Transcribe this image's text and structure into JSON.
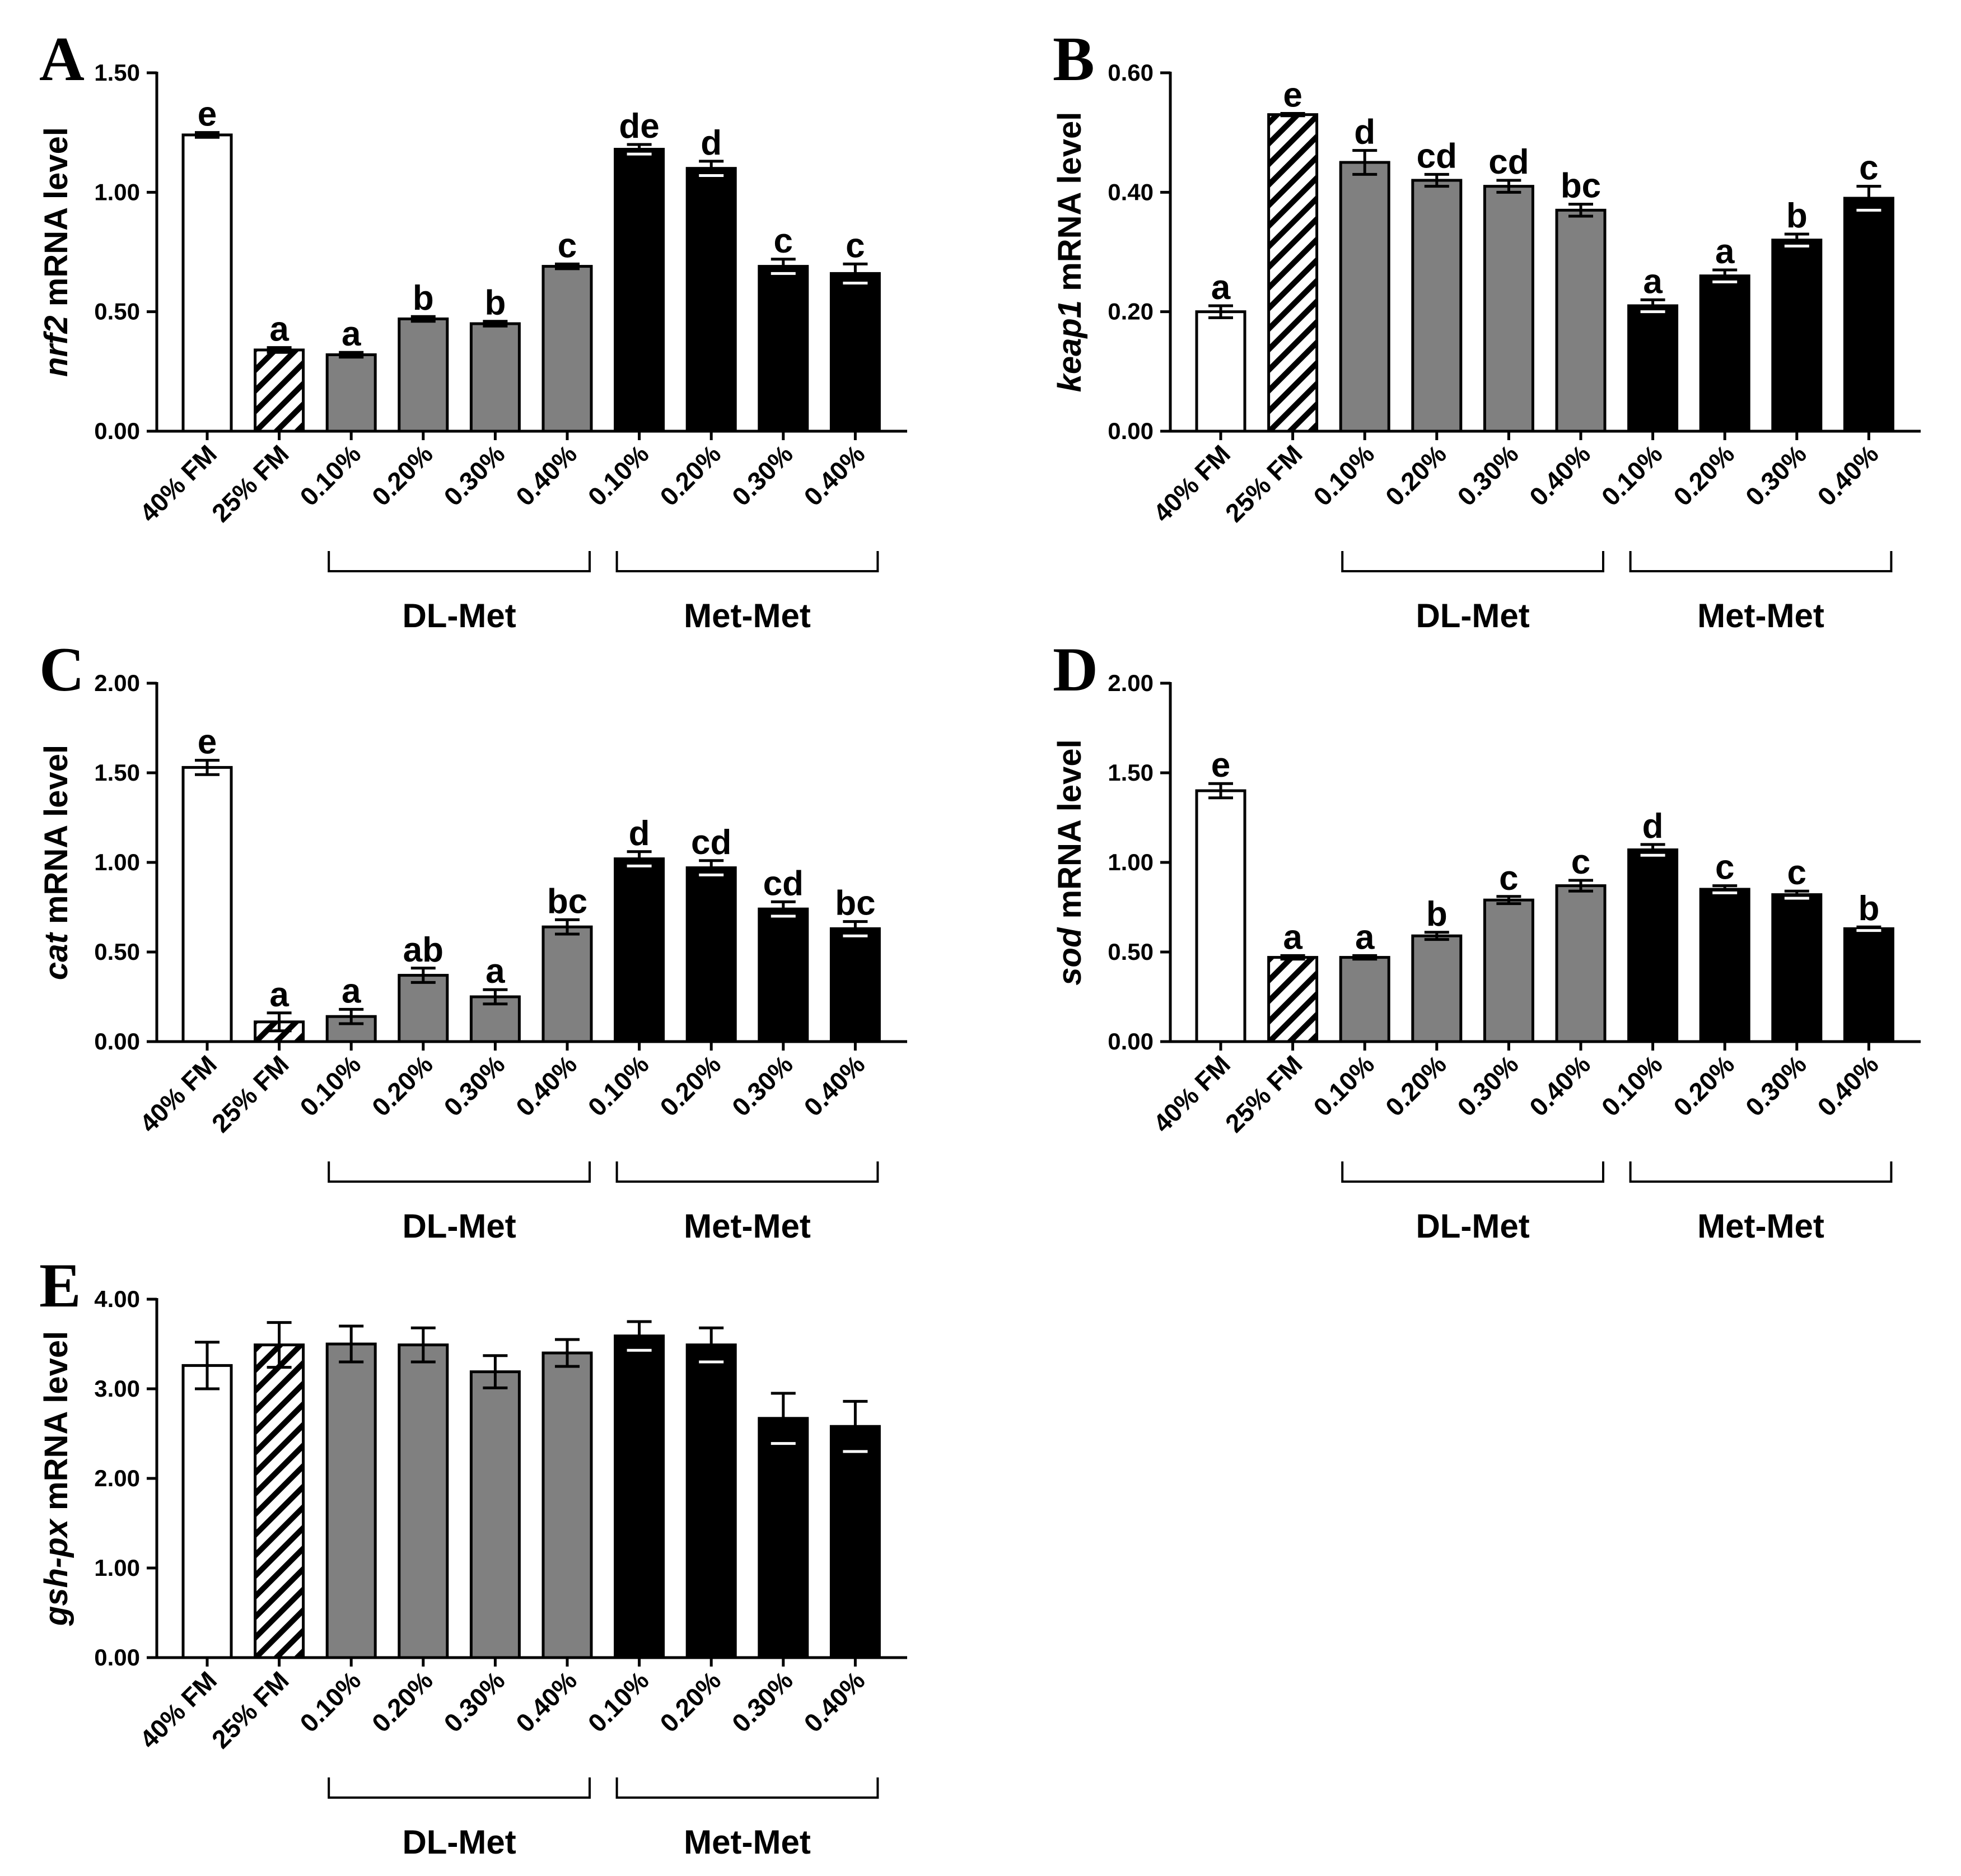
{
  "chart_data": [
    {
      "panel": "A",
      "type": "bar",
      "ylabel_gene": "nrf2",
      "ylabel_rest": " mRNA level",
      "ylim": [
        0,
        1.5
      ],
      "yticks": [
        "0.00",
        "0.50",
        "1.00",
        "1.50"
      ],
      "yticks_values": [
        0,
        0.5,
        1.0,
        1.5
      ],
      "categories": [
        "40% FM",
        "25% FM",
        "0.10%",
        "0.20%",
        "0.30%",
        "0.40%",
        "0.10%",
        "0.20%",
        "0.30%",
        "0.40%"
      ],
      "values": [
        1.24,
        0.34,
        0.32,
        0.47,
        0.45,
        0.69,
        1.18,
        1.1,
        0.69,
        0.66
      ],
      "errors": [
        0.01,
        0.01,
        0.01,
        0.01,
        0.01,
        0.01,
        0.02,
        0.03,
        0.03,
        0.04
      ],
      "letters": [
        "e",
        "a",
        "a",
        "b",
        "b",
        "c",
        "de",
        "d",
        "c",
        "c"
      ],
      "groups": [
        "DL-Met",
        "Met-Met"
      ]
    },
    {
      "panel": "B",
      "type": "bar",
      "ylabel_gene": "keap1",
      "ylabel_rest": " mRNA level",
      "ylim": [
        0,
        0.6
      ],
      "yticks": [
        "0.00",
        "0.20",
        "0.40",
        "0.60"
      ],
      "yticks_values": [
        0,
        0.2,
        0.4,
        0.6
      ],
      "categories": [
        "40% FM",
        "25% FM",
        "0.10%",
        "0.20%",
        "0.30%",
        "0.40%",
        "0.10%",
        "0.20%",
        "0.30%",
        "0.40%"
      ],
      "values": [
        0.2,
        0.53,
        0.45,
        0.42,
        0.41,
        0.37,
        0.21,
        0.26,
        0.32,
        0.39
      ],
      "errors": [
        0.01,
        0.002,
        0.02,
        0.01,
        0.01,
        0.01,
        0.01,
        0.01,
        0.01,
        0.02
      ],
      "letters": [
        "a",
        "e",
        "d",
        "cd",
        "cd",
        "bc",
        "a",
        "a",
        "b",
        "c"
      ],
      "groups": [
        "DL-Met",
        "Met-Met"
      ]
    },
    {
      "panel": "C",
      "type": "bar",
      "ylabel_gene": "cat",
      "ylabel_rest": " mRNA level",
      "ylim": [
        0,
        2.0
      ],
      "yticks": [
        "0.00",
        "0.50",
        "1.00",
        "1.50",
        "2.00"
      ],
      "yticks_values": [
        0,
        0.5,
        1.0,
        1.5,
        2.0
      ],
      "categories": [
        "40% FM",
        "25% FM",
        "0.10%",
        "0.20%",
        "0.30%",
        "0.40%",
        "0.10%",
        "0.20%",
        "0.30%",
        "0.40%"
      ],
      "values": [
        1.53,
        0.11,
        0.14,
        0.37,
        0.25,
        0.64,
        1.02,
        0.97,
        0.74,
        0.63
      ],
      "errors": [
        0.04,
        0.05,
        0.04,
        0.04,
        0.04,
        0.04,
        0.04,
        0.04,
        0.04,
        0.04
      ],
      "letters": [
        "e",
        "a",
        "a",
        "ab",
        "a",
        "bc",
        "d",
        "cd",
        "cd",
        "bc"
      ],
      "groups": [
        "DL-Met",
        "Met-Met"
      ]
    },
    {
      "panel": "D",
      "type": "bar",
      "ylabel_gene": "sod",
      "ylabel_rest": " mRNA level",
      "ylim": [
        0,
        2.0
      ],
      "yticks": [
        "0.00",
        "0.50",
        "1.00",
        "1.50",
        "2.00"
      ],
      "yticks_values": [
        0,
        0.5,
        1.0,
        1.5,
        2.0
      ],
      "categories": [
        "40% FM",
        "25% FM",
        "0.10%",
        "0.20%",
        "0.30%",
        "0.40%",
        "0.10%",
        "0.20%",
        "0.30%",
        "0.40%"
      ],
      "values": [
        1.4,
        0.47,
        0.47,
        0.59,
        0.79,
        0.87,
        1.07,
        0.85,
        0.82,
        0.63
      ],
      "errors": [
        0.04,
        0.01,
        0.01,
        0.02,
        0.02,
        0.03,
        0.03,
        0.02,
        0.02,
        0.01
      ],
      "letters": [
        "e",
        "a",
        "a",
        "b",
        "c",
        "c",
        "d",
        "c",
        "c",
        "b"
      ],
      "groups": [
        "DL-Met",
        "Met-Met"
      ]
    },
    {
      "panel": "E",
      "type": "bar",
      "ylabel_gene": "gsh-px",
      "ylabel_rest": " mRNA level",
      "ylim": [
        0,
        4.0
      ],
      "yticks": [
        "0.00",
        "1.00",
        "2.00",
        "3.00",
        "4.00"
      ],
      "yticks_values": [
        0,
        1.0,
        2.0,
        3.0,
        4.0
      ],
      "categories": [
        "40% FM",
        "25% FM",
        "0.10%",
        "0.20%",
        "0.30%",
        "0.40%",
        "0.10%",
        "0.20%",
        "0.30%",
        "0.40%"
      ],
      "values": [
        3.26,
        3.49,
        3.5,
        3.49,
        3.19,
        3.4,
        3.59,
        3.49,
        2.67,
        2.58
      ],
      "errors": [
        0.26,
        0.25,
        0.2,
        0.19,
        0.18,
        0.15,
        0.16,
        0.19,
        0.28,
        0.28
      ],
      "letters": [
        "",
        "",
        "",
        "",
        "",
        "",
        "",
        "",
        "",
        ""
      ],
      "groups": [
        "DL-Met",
        "Met-Met"
      ]
    }
  ],
  "bar_styles": [
    "white",
    "hatched",
    "gray",
    "gray",
    "gray",
    "gray",
    "black",
    "black",
    "black",
    "black"
  ],
  "colors": {
    "gray": "#808080",
    "black": "#000000",
    "white": "#ffffff"
  }
}
